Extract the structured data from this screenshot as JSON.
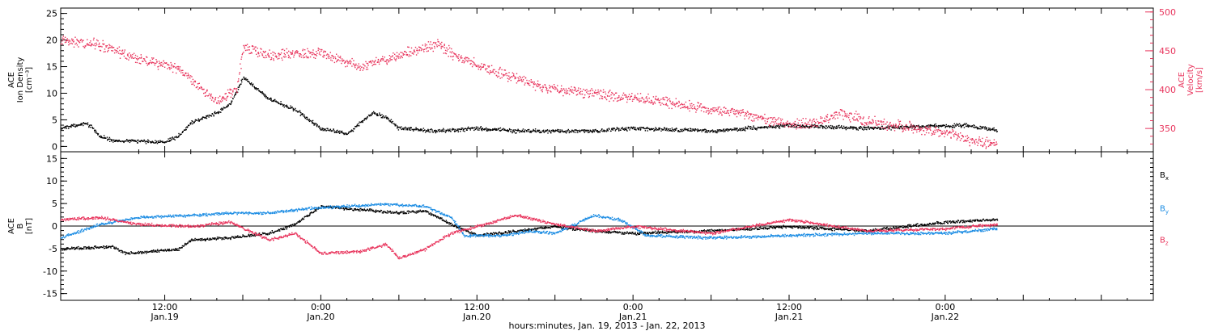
{
  "figure": {
    "xaxis_title": "hours:minutes, Jan. 19, 2013 - Jan. 22, 2013",
    "x_ticks": [
      {
        "time": "2013-01-19T12:00",
        "hm": "12:00",
        "day": "Jan.19"
      },
      {
        "time": "2013-01-20T00:00",
        "hm": "0:00",
        "day": "Jan.20"
      },
      {
        "time": "2013-01-20T12:00",
        "hm": "12:00",
        "day": "Jan.20"
      },
      {
        "time": "2013-01-21T00:00",
        "hm": "0:00",
        "day": "Jan.21"
      },
      {
        "time": "2013-01-21T12:00",
        "hm": "12:00",
        "day": "Jan.21"
      },
      {
        "time": "2013-01-22T00:00",
        "hm": "0:00",
        "day": "Jan.22"
      }
    ]
  },
  "chart_data": [
    {
      "type": "scatter",
      "xlim": [
        "2013-01-19T04:00",
        "2013-01-22T16:00"
      ],
      "ylabel_left": [
        "ACE",
        "Ion Density",
        "[cm⁻³]"
      ],
      "ylim_left": [
        -1,
        26
      ],
      "yticks_left": [
        0,
        5,
        10,
        15,
        20,
        25
      ],
      "ylabel_right": [
        "ACE",
        "Velocity",
        "[km/s]"
      ],
      "ylim_right": [
        320,
        505
      ],
      "yticks_right": [
        350,
        400,
        450,
        500
      ],
      "grid": false,
      "series": [
        {
          "axis": "left",
          "color": "#000000",
          "points": [
            [
              "2013-01-19T04:00",
              3.5
            ],
            [
              "2013-01-19T06:00",
              4.5
            ],
            [
              "2013-01-19T07:00",
              2.0
            ],
            [
              "2013-01-19T08:00",
              1.2
            ],
            [
              "2013-01-19T12:00",
              1.0
            ],
            [
              "2013-01-19T13:00",
              2.0
            ],
            [
              "2013-01-19T14:00",
              4.5
            ],
            [
              "2013-01-19T16:00",
              6.5
            ],
            [
              "2013-01-19T17:00",
              8.0
            ],
            [
              "2013-01-19T18:00",
              13.0
            ],
            [
              "2013-01-19T19:00",
              11.0
            ],
            [
              "2013-01-19T20:00",
              9.0
            ],
            [
              "2013-01-19T22:00",
              7.0
            ],
            [
              "2013-01-20T00:00",
              3.5
            ],
            [
              "2013-01-20T02:00",
              2.5
            ],
            [
              "2013-01-20T04:00",
              6.5
            ],
            [
              "2013-01-20T05:00",
              5.5
            ],
            [
              "2013-01-20T06:00",
              3.5
            ],
            [
              "2013-01-20T09:00",
              3.0
            ],
            [
              "2013-01-20T12:00",
              3.5
            ],
            [
              "2013-01-20T15:00",
              3.0
            ],
            [
              "2013-01-20T18:00",
              3.0
            ],
            [
              "2013-01-20T21:00",
              3.0
            ],
            [
              "2013-01-21T00:00",
              3.5
            ],
            [
              "2013-01-21T06:00",
              3.0
            ],
            [
              "2013-01-21T12:00",
              4.0
            ],
            [
              "2013-01-21T18:00",
              3.5
            ],
            [
              "2013-01-22T00:00",
              4.0
            ],
            [
              "2013-01-22T02:00",
              4.0
            ],
            [
              "2013-01-22T04:00",
              3.0
            ]
          ]
        },
        {
          "axis": "right",
          "color": "#e8345c",
          "points": [
            [
              "2013-01-19T04:00",
              465
            ],
            [
              "2013-01-19T07:00",
              458
            ],
            [
              "2013-01-19T10:00",
              440
            ],
            [
              "2013-01-19T13:00",
              428
            ],
            [
              "2013-01-19T16:00",
              385
            ],
            [
              "2013-01-19T17:30",
              400
            ],
            [
              "2013-01-19T18:00",
              455
            ],
            [
              "2013-01-19T20:00",
              445
            ],
            [
              "2013-01-20T00:00",
              448
            ],
            [
              "2013-01-20T03:00",
              430
            ],
            [
              "2013-01-20T06:00",
              445
            ],
            [
              "2013-01-20T09:00",
              460
            ],
            [
              "2013-01-20T10:00",
              447
            ],
            [
              "2013-01-20T12:00",
              432
            ],
            [
              "2013-01-20T15:00",
              415
            ],
            [
              "2013-01-20T18:00",
              400
            ],
            [
              "2013-01-20T21:00",
              395
            ],
            [
              "2013-01-21T00:00",
              390
            ],
            [
              "2013-01-21T03:00",
              383
            ],
            [
              "2013-01-21T06:00",
              375
            ],
            [
              "2013-01-21T08:00",
              372
            ],
            [
              "2013-01-21T10:00",
              363
            ],
            [
              "2013-01-21T12:00",
              356
            ],
            [
              "2013-01-21T14:00",
              358
            ],
            [
              "2013-01-21T16:00",
              370
            ],
            [
              "2013-01-21T18:00",
              360
            ],
            [
              "2013-01-21T21:00",
              352
            ],
            [
              "2013-01-22T00:00",
              345
            ],
            [
              "2013-01-22T02:00",
              335
            ],
            [
              "2013-01-22T04:00",
              330
            ]
          ]
        }
      ]
    },
    {
      "type": "scatter",
      "xlim": [
        "2013-01-19T04:00",
        "2013-01-22T16:00"
      ],
      "ylabel_left": [
        "ACE",
        "B",
        "[nT]"
      ],
      "ylim_left": [
        -16.5,
        16.5
      ],
      "yticks_left": [
        -15,
        -10,
        -5,
        0,
        5,
        10,
        15
      ],
      "zero_line": true,
      "grid": false,
      "series": [
        {
          "name": "B",
          "sub": "x",
          "color": "#000000",
          "points": [
            [
              "2013-01-19T04:00",
              -5.0
            ],
            [
              "2013-01-19T08:00",
              -4.5
            ],
            [
              "2013-01-19T09:00",
              -6.0
            ],
            [
              "2013-01-19T13:00",
              -5.0
            ],
            [
              "2013-01-19T14:00",
              -3.0
            ],
            [
              "2013-01-19T17:00",
              -2.5
            ],
            [
              "2013-01-19T20:00",
              -1.5
            ],
            [
              "2013-01-19T22:00",
              0.5
            ],
            [
              "2013-01-20T00:00",
              4.5
            ],
            [
              "2013-01-20T02:00",
              4.0
            ],
            [
              "2013-01-20T04:00",
              3.5
            ],
            [
              "2013-01-20T06:00",
              3.0
            ],
            [
              "2013-01-20T08:00",
              3.5
            ],
            [
              "2013-01-20T10:00",
              0.5
            ],
            [
              "2013-01-20T12:00",
              -2.0
            ],
            [
              "2013-01-20T15:00",
              -1.0
            ],
            [
              "2013-01-20T18:00",
              0.0
            ],
            [
              "2013-01-20T21:00",
              -1.0
            ],
            [
              "2013-01-21T00:00",
              -1.5
            ],
            [
              "2013-01-21T06:00",
              -1.0
            ],
            [
              "2013-01-21T12:00",
              0.0
            ],
            [
              "2013-01-21T18:00",
              -1.0
            ],
            [
              "2013-01-22T00:00",
              1.0
            ],
            [
              "2013-01-22T04:00",
              1.5
            ]
          ]
        },
        {
          "name": "B",
          "sub": "y",
          "color": "#1b8ce3",
          "points": [
            [
              "2013-01-19T04:00",
              -2.5
            ],
            [
              "2013-01-19T07:00",
              0.5
            ],
            [
              "2013-01-19T10:00",
              2.0
            ],
            [
              "2013-01-19T14:00",
              2.5
            ],
            [
              "2013-01-19T17:00",
              3.0
            ],
            [
              "2013-01-19T20:00",
              3.0
            ],
            [
              "2013-01-19T23:00",
              4.0
            ],
            [
              "2013-01-20T02:00",
              4.5
            ],
            [
              "2013-01-20T05:00",
              5.0
            ],
            [
              "2013-01-20T08:00",
              4.5
            ],
            [
              "2013-01-20T10:00",
              2.0
            ],
            [
              "2013-01-20T11:00",
              -2.0
            ],
            [
              "2013-01-20T14:00",
              -2.0
            ],
            [
              "2013-01-20T16:00",
              -1.0
            ],
            [
              "2013-01-20T18:00",
              -1.5
            ],
            [
              "2013-01-20T21:00",
              2.5
            ],
            [
              "2013-01-20T23:00",
              1.5
            ],
            [
              "2013-01-21T01:00",
              -2.0
            ],
            [
              "2013-01-21T06:00",
              -2.5
            ],
            [
              "2013-01-21T12:00",
              -2.0
            ],
            [
              "2013-01-21T18:00",
              -1.5
            ],
            [
              "2013-01-22T00:00",
              -1.5
            ],
            [
              "2013-01-22T04:00",
              -0.5
            ]
          ]
        },
        {
          "name": "B",
          "sub": "z",
          "color": "#e8345c",
          "points": [
            [
              "2013-01-19T04:00",
              1.5
            ],
            [
              "2013-01-19T07:00",
              2.0
            ],
            [
              "2013-01-19T10:00",
              0.5
            ],
            [
              "2013-01-19T14:00",
              0.0
            ],
            [
              "2013-01-19T17:00",
              1.0
            ],
            [
              "2013-01-19T20:00",
              -3.0
            ],
            [
              "2013-01-19T22:00",
              -1.5
            ],
            [
              "2013-01-20T00:00",
              -6.0
            ],
            [
              "2013-01-20T03:00",
              -5.5
            ],
            [
              "2013-01-20T05:00",
              -4.0
            ],
            [
              "2013-01-20T06:00",
              -7.0
            ],
            [
              "2013-01-20T08:00",
              -5.0
            ],
            [
              "2013-01-20T10:00",
              -1.5
            ],
            [
              "2013-01-20T12:00",
              0.0
            ],
            [
              "2013-01-20T15:00",
              2.5
            ],
            [
              "2013-01-20T18:00",
              0.5
            ],
            [
              "2013-01-20T21:00",
              -1.0
            ],
            [
              "2013-01-21T00:00",
              0.0
            ],
            [
              "2013-01-21T06:00",
              -1.5
            ],
            [
              "2013-01-21T12:00",
              1.5
            ],
            [
              "2013-01-21T18:00",
              -1.0
            ],
            [
              "2013-01-22T00:00",
              -0.5
            ],
            [
              "2013-01-22T04:00",
              0.5
            ]
          ]
        }
      ]
    }
  ]
}
